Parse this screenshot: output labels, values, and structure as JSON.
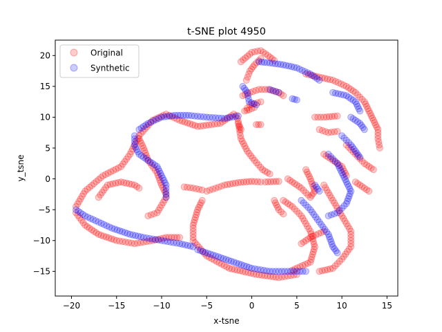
{
  "chart_data": {
    "type": "scatter",
    "title": "t-SNE plot 4950",
    "xlabel": "x-tsne",
    "ylabel": "y_tsne",
    "xlim": [
      -21.8,
      16.2
    ],
    "ylim": [
      -19.0,
      22.5
    ],
    "xticks": [
      -20,
      -15,
      -10,
      -5,
      0,
      5,
      10,
      15
    ],
    "yticks": [
      -15,
      -10,
      -5,
      0,
      5,
      10,
      15,
      20
    ],
    "grid": false,
    "legend_position": "top-left",
    "series": [
      {
        "name": "Original",
        "color": "#ff0000",
        "alpha": 0.2,
        "curves": [
          [
            [
              -1.2,
              19.0
            ],
            [
              0.0,
              20.5
            ],
            [
              1.0,
              20.8
            ],
            [
              1.8,
              20.0
            ],
            [
              2.5,
              19.2
            ]
          ],
          [
            [
              -0.6,
              16.0
            ],
            [
              -0.2,
              17.5
            ],
            [
              0.3,
              18.5
            ],
            [
              1.0,
              19.5
            ]
          ],
          [
            [
              -1.0,
              13.5
            ],
            [
              -0.2,
              14.0
            ],
            [
              0.8,
              14.5
            ],
            [
              1.8,
              14.5
            ],
            [
              3.0,
              14.0
            ],
            [
              3.5,
              13.5
            ]
          ],
          [
            [
              -0.5,
              11.5
            ],
            [
              -0.2,
              12.0
            ],
            [
              0.3,
              12.2
            ],
            [
              1.0,
              12.5
            ]
          ],
          [
            [
              -1.5,
              9.0
            ],
            [
              -1.2,
              6.5
            ],
            [
              -0.5,
              4.5
            ],
            [
              0.3,
              3.0
            ],
            [
              1.2,
              1.5
            ],
            [
              2.0,
              0.8
            ]
          ],
          [
            [
              -1.7,
              10.3
            ],
            [
              -1.6,
              9.8
            ],
            [
              -1.5,
              9.3
            ],
            [
              -1.4,
              8.7
            ],
            [
              -1.2,
              8.0
            ]
          ],
          [
            [
              -0.8,
              11.0
            ],
            [
              -0.3,
              11.2
            ],
            [
              0.3,
              11.6
            ]
          ],
          [
            [
              0.5,
              8.8
            ],
            [
              1.0,
              8.8
            ]
          ],
          [
            [
              -5.0,
              -2.0
            ],
            [
              -4.0,
              -1.5
            ],
            [
              -3.0,
              -1.0
            ],
            [
              -1.5,
              -0.6
            ],
            [
              0.0,
              -0.4
            ],
            [
              1.0,
              -0.5
            ]
          ],
          [
            [
              -7.5,
              -1.3
            ],
            [
              -6.5,
              -1.5
            ],
            [
              -5.5,
              -1.8
            ]
          ],
          [
            [
              -5.5,
              -3.5
            ],
            [
              -6.0,
              -5.0
            ],
            [
              -6.5,
              -7.5
            ],
            [
              -6.5,
              -10.0
            ],
            [
              -5.0,
              -12.5
            ],
            [
              -2.5,
              -14.5
            ],
            [
              0.5,
              -15.5
            ],
            [
              3.0,
              -16.0
            ],
            [
              5.0,
              -15.5
            ]
          ],
          [
            [
              -19.5,
              -4.5
            ],
            [
              -18.5,
              -2.0
            ],
            [
              -16.5,
              0.5
            ],
            [
              -14.5,
              2.0
            ],
            [
              -13.5,
              4.0
            ],
            [
              -12.5,
              7.0
            ],
            [
              -11.0,
              9.5
            ],
            [
              -9.5,
              10.5
            ],
            [
              -8.0,
              9.5
            ],
            [
              -6.0,
              8.5
            ],
            [
              -3.5,
              9.0
            ],
            [
              -2.0,
              10.5
            ]
          ],
          [
            [
              -19.5,
              -5.5
            ],
            [
              -18.5,
              -7.5
            ],
            [
              -17.0,
              -9.0
            ],
            [
              -15.0,
              -10.0
            ],
            [
              -13.0,
              -10.5
            ],
            [
              -11.0,
              -10.0
            ],
            [
              -9.5,
              -9.5
            ],
            [
              -8.0,
              -9.5
            ]
          ],
          [
            [
              -17.0,
              -3.0
            ],
            [
              -16.0,
              -1.0
            ],
            [
              -14.5,
              -0.5
            ],
            [
              -13.0,
              -1.0
            ],
            [
              -12.5,
              -1.5
            ]
          ],
          [
            [
              -12.5,
              6.5
            ],
            [
              -12.0,
              5.0
            ],
            [
              -11.5,
              3.0
            ],
            [
              -10.5,
              1.0
            ],
            [
              -10.0,
              -1.0
            ],
            [
              -9.5,
              -2.5
            ]
          ],
          [
            [
              -11.5,
              -6.0
            ],
            [
              -10.5,
              -5.5
            ],
            [
              -9.5,
              -3.0
            ]
          ],
          [
            [
              2.5,
              -3.5
            ],
            [
              3.0,
              -5.0
            ],
            [
              3.5,
              -5.7
            ]
          ],
          [
            [
              1.5,
              -0.5
            ],
            [
              3.0,
              -0.4
            ]
          ],
          [
            [
              3.5,
              -3.5
            ],
            [
              4.5,
              -4.5
            ],
            [
              5.5,
              -6.0
            ],
            [
              6.5,
              -8.5
            ],
            [
              7.0,
              -11.0
            ],
            [
              6.5,
              -13.5
            ],
            [
              4.5,
              -14.8
            ]
          ],
          [
            [
              4.0,
              0.0
            ],
            [
              5.5,
              -1.5
            ],
            [
              6.5,
              -3.0
            ],
            [
              7.0,
              -2.0
            ],
            [
              6.5,
              0.0
            ],
            [
              6.0,
              1.5
            ]
          ],
          [
            [
              6.0,
              17.0
            ],
            [
              7.5,
              16.5
            ],
            [
              9.0,
              16.0
            ],
            [
              10.5,
              15.0
            ],
            [
              11.5,
              14.0
            ],
            [
              12.5,
              12.5
            ],
            [
              13.0,
              11.0
            ],
            [
              13.5,
              9.5
            ],
            [
              14.0,
              8.0
            ],
            [
              14.0,
              6.5
            ],
            [
              14.2,
              5.0
            ]
          ],
          [
            [
              7.0,
              10.0
            ],
            [
              8.0,
              10.0
            ],
            [
              9.5,
              10.2
            ]
          ],
          [
            [
              7.5,
              8.0
            ],
            [
              8.5,
              7.5
            ],
            [
              9.5,
              7.7
            ]
          ],
          [
            [
              8.0,
              4.0
            ],
            [
              9.0,
              3.0
            ],
            [
              10.0,
              2.0
            ],
            [
              10.5,
              0.5
            ]
          ],
          [
            [
              10.5,
              5.5
            ],
            [
              11.5,
              4.0
            ],
            [
              12.5,
              2.5
            ],
            [
              13.5,
              1.5
            ]
          ],
          [
            [
              8.0,
              -1.0
            ],
            [
              9.0,
              -3.5
            ],
            [
              10.0,
              -6.0
            ],
            [
              11.0,
              -8.5
            ],
            [
              11.0,
              -11.0
            ],
            [
              10.0,
              -13.0
            ],
            [
              9.0,
              -14.5
            ],
            [
              7.5,
              -15.0
            ]
          ],
          [
            [
              5.5,
              -10.5
            ],
            [
              6.5,
              -9.5
            ],
            [
              8.0,
              -8.5
            ]
          ],
          [
            [
              11.5,
              -0.5
            ],
            [
              12.5,
              -1.5
            ],
            [
              13.0,
              -2.0
            ]
          ]
        ]
      },
      {
        "name": "Synthetic",
        "color": "#0000ff",
        "alpha": 0.2,
        "curves": [
          [
            [
              0.8,
              19.0
            ],
            [
              2.0,
              18.8
            ],
            [
              3.5,
              18.5
            ],
            [
              5.0,
              18.0
            ],
            [
              6.5,
              17.0
            ],
            [
              7.5,
              16.0
            ]
          ],
          [
            [
              -1.0,
              15.0
            ],
            [
              -0.5,
              14.0
            ],
            [
              -0.3,
              12.5
            ],
            [
              0.5,
              12.0
            ]
          ],
          [
            [
              2.0,
              14.5
            ],
            [
              3.0,
              14.0
            ]
          ],
          [
            [
              4.5,
              13.0
            ],
            [
              5.0,
              12.8
            ]
          ],
          [
            [
              9.0,
              14.0
            ],
            [
              10.5,
              13.5
            ],
            [
              11.5,
              12.5
            ],
            [
              12.0,
              11.0
            ]
          ],
          [
            [
              -12.5,
              8.0
            ],
            [
              -11.5,
              9.0
            ],
            [
              -10.0,
              10.0
            ],
            [
              -8.5,
              10.3
            ],
            [
              -7.0,
              10.3
            ],
            [
              -5.0,
              10.0
            ],
            [
              -3.0,
              9.8
            ],
            [
              -1.5,
              10.2
            ]
          ],
          [
            [
              -13.0,
              7.0
            ],
            [
              -13.0,
              5.5
            ],
            [
              -12.5,
              4.0
            ],
            [
              -11.5,
              3.0
            ],
            [
              -10.5,
              2.0
            ],
            [
              -10.0,
              0.5
            ],
            [
              -9.5,
              -1.0
            ],
            [
              -9.5,
              -3.0
            ]
          ],
          [
            [
              -19.5,
              -5.0
            ],
            [
              -18.5,
              -6.0
            ],
            [
              -17.0,
              -7.0
            ],
            [
              -15.5,
              -8.0
            ],
            [
              -13.5,
              -9.0
            ],
            [
              -12.0,
              -9.5
            ],
            [
              -10.0,
              -10.0
            ],
            [
              -8.0,
              -10.5
            ],
            [
              -6.5,
              -11.0
            ]
          ],
          [
            [
              -6.0,
              -11.5
            ],
            [
              -4.0,
              -12.5
            ],
            [
              -2.0,
              -13.5
            ],
            [
              0.0,
              -14.5
            ],
            [
              2.0,
              -15.0
            ],
            [
              4.0,
              -15.0
            ],
            [
              6.0,
              -15.0
            ]
          ],
          [
            [
              5.5,
              -3.5
            ],
            [
              6.5,
              -5.0
            ],
            [
              7.5,
              -7.0
            ],
            [
              8.5,
              -9.0
            ],
            [
              9.0,
              -11.0
            ],
            [
              9.5,
              -12.0
            ]
          ],
          [
            [
              8.5,
              4.0
            ],
            [
              9.5,
              2.5
            ],
            [
              10.0,
              1.0
            ],
            [
              10.5,
              -0.5
            ],
            [
              11.0,
              -2.0
            ],
            [
              10.5,
              -4.0
            ],
            [
              9.5,
              -5.5
            ],
            [
              8.5,
              -6.0
            ]
          ],
          [
            [
              10.0,
              7.0
            ],
            [
              11.0,
              5.5
            ],
            [
              11.5,
              4.5
            ],
            [
              12.0,
              3.5
            ]
          ],
          [
            [
              11.0,
              10.0
            ],
            [
              12.0,
              9.0
            ],
            [
              12.5,
              8.0
            ]
          ],
          [
            [
              7.0,
              -1.0
            ],
            [
              7.5,
              -2.0
            ]
          ]
        ]
      }
    ]
  }
}
